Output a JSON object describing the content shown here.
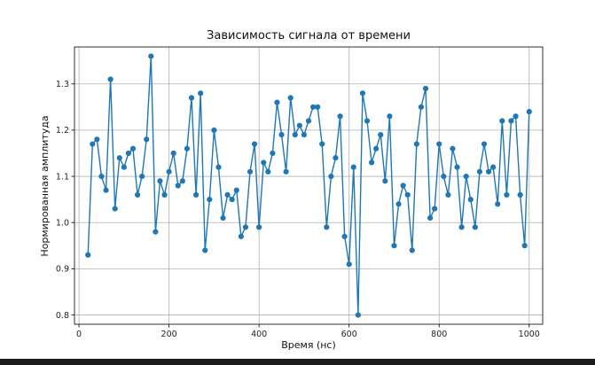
{
  "chart_data": {
    "type": "line",
    "title": "Зависимость сигнала от времени",
    "xlabel": "Время (нс)",
    "ylabel": "Нормированная амплитуда",
    "xlim": [
      -10,
      1030
    ],
    "ylim": [
      0.78,
      1.38
    ],
    "xticks": [
      0,
      200,
      400,
      600,
      800,
      1000
    ],
    "yticks": [
      0.8,
      0.9,
      1.0,
      1.1,
      1.2,
      1.3
    ],
    "xtick_labels": [
      "0",
      "200",
      "400",
      "600",
      "800",
      "1000"
    ],
    "ytick_labels": [
      "0.8",
      "0.9",
      "1.0",
      "1.1",
      "1.2",
      "1.3"
    ],
    "grid": true,
    "color": "#1f77b4",
    "marker": "circle",
    "series": [
      {
        "x": [
          20,
          30,
          40,
          50,
          60,
          70,
          80,
          90,
          100,
          110,
          120,
          130,
          140,
          150,
          160,
          170,
          180,
          190,
          200,
          210,
          220,
          230,
          240,
          250,
          260,
          270,
          280,
          290,
          300,
          310,
          320,
          330,
          340,
          350,
          360,
          370,
          380,
          390,
          400,
          410,
          420,
          430,
          440,
          450,
          460,
          470,
          480,
          490,
          500,
          510,
          520,
          530,
          540,
          550,
          560,
          570,
          580,
          590,
          600,
          610,
          620,
          630,
          640,
          650,
          660,
          670,
          680,
          690,
          700,
          710,
          720,
          730,
          740,
          750,
          760,
          770,
          780,
          790,
          800,
          810,
          820,
          830,
          840,
          850,
          860,
          870,
          880,
          890,
          900,
          910,
          920,
          930,
          940,
          950,
          960,
          970,
          980,
          990,
          1000
        ],
        "y": [
          0.93,
          1.17,
          1.18,
          1.1,
          1.07,
          1.31,
          1.03,
          1.14,
          1.12,
          1.15,
          1.16,
          1.06,
          1.1,
          1.18,
          1.36,
          0.98,
          1.09,
          1.06,
          1.11,
          1.15,
          1.08,
          1.09,
          1.16,
          1.27,
          1.06,
          1.28,
          0.94,
          1.05,
          1.2,
          1.12,
          1.01,
          1.06,
          1.05,
          1.07,
          0.97,
          0.99,
          1.11,
          1.17,
          0.99,
          1.13,
          1.11,
          1.15,
          1.26,
          1.19,
          1.11,
          1.27,
          1.19,
          1.21,
          1.19,
          1.22,
          1.25,
          1.25,
          1.17,
          0.99,
          1.1,
          1.14,
          1.23,
          0.97,
          0.91,
          1.12,
          0.8,
          1.28,
          1.22,
          1.13,
          1.16,
          1.19,
          1.09,
          1.23,
          0.95,
          1.04,
          1.08,
          1.06,
          0.94,
          1.17,
          1.25,
          1.29,
          1.01,
          1.03,
          1.17,
          1.1,
          1.06,
          1.16,
          1.12,
          0.99,
          1.1,
          1.05,
          0.99,
          1.11,
          1.17,
          1.11,
          1.12,
          1.04,
          1.22,
          1.06,
          1.22,
          1.23,
          1.06,
          0.95,
          1.24
        ]
      }
    ]
  }
}
